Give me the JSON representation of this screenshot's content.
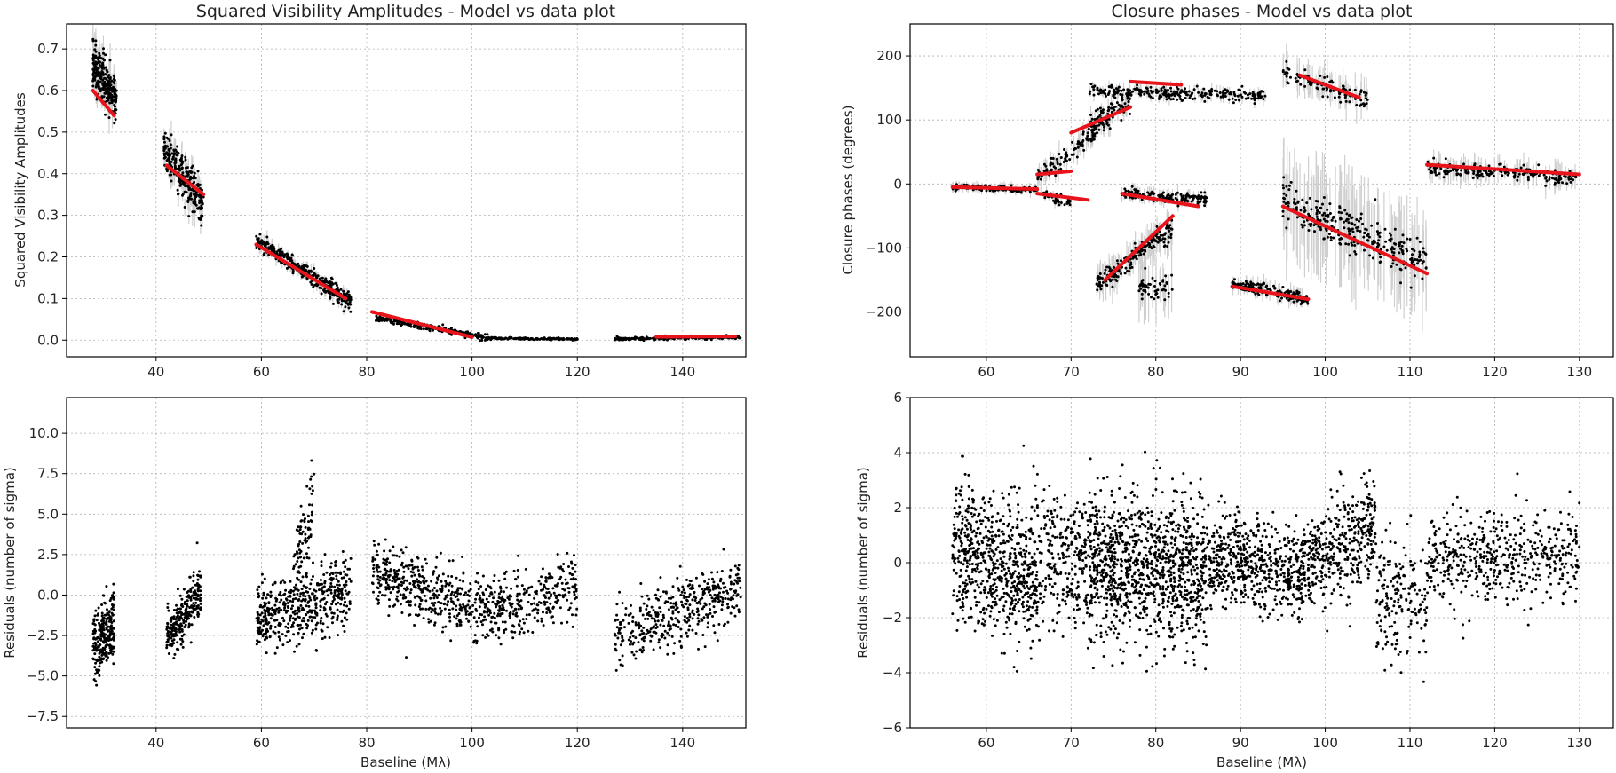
{
  "colors": {
    "data": "#000000",
    "model": "#e8141b",
    "errorbar": "#cfcfcf",
    "grid": "#b0b0b0"
  },
  "chart_data": [
    {
      "id": "v2",
      "type": "scatter",
      "title": "Squared Visibility Amplitudes - Model vs data plot",
      "xlabel": "",
      "ylabel": "Squared Visibility Amplitudes",
      "xlim": [
        23,
        152
      ],
      "ylim": [
        -0.04,
        0.76
      ],
      "xticks": [
        40,
        60,
        80,
        100,
        120,
        140
      ],
      "yticks": [
        0.0,
        0.1,
        0.2,
        0.3,
        0.4,
        0.5,
        0.6,
        0.7
      ],
      "ytick_labels": [
        "0.0",
        "0.1",
        "0.2",
        "0.3",
        "0.4",
        "0.5",
        "0.6",
        "0.7"
      ],
      "grid": true,
      "series": [
        {
          "name": "data",
          "marker": "dot",
          "segments": [
            {
              "x": [
                28,
                32.5
              ],
              "y": [
                0.66,
                0.58
              ],
              "spread": 0.05,
              "err": 0.03,
              "n": 260
            },
            {
              "x": [
                41.5,
                49
              ],
              "y": [
                0.46,
                0.33
              ],
              "spread": 0.04,
              "err": 0.025,
              "n": 260
            },
            {
              "x": [
                59,
                77
              ],
              "y": [
                0.24,
                0.09
              ],
              "spread": 0.018,
              "err": 0.012,
              "n": 360
            },
            {
              "x": [
                81,
                103
              ],
              "y": [
                0.055,
                0.005
              ],
              "spread": 0.006,
              "err": 0.003,
              "n": 240
            },
            {
              "x": [
                103,
                120
              ],
              "y": [
                0.005,
                0.002
              ],
              "spread": 0.002,
              "err": 0.001,
              "n": 150
            },
            {
              "x": [
                127,
                151
              ],
              "y": [
                0.003,
                0.007
              ],
              "spread": 0.003,
              "err": 0.001,
              "n": 220
            }
          ]
        },
        {
          "name": "model",
          "marker": "line",
          "segments": [
            {
              "x": [
                28,
                32
              ],
              "y": [
                0.6,
                0.54
              ]
            },
            {
              "x": [
                42,
                49
              ],
              "y": [
                0.42,
                0.35
              ]
            },
            {
              "x": [
                59,
                76
              ],
              "y": [
                0.23,
                0.1
              ]
            },
            {
              "x": [
                81,
                100
              ],
              "y": [
                0.068,
                0.007
              ]
            },
            {
              "x": [
                135,
                150
              ],
              "y": [
                0.008,
                0.009
              ]
            }
          ]
        }
      ]
    },
    {
      "id": "cp",
      "type": "scatter",
      "title": "Closure phases - Model vs data plot",
      "xlabel": "",
      "ylabel": "Closure phases (degrees)",
      "xlim": [
        51,
        134
      ],
      "ylim": [
        -270,
        250
      ],
      "xticks": [
        60,
        70,
        80,
        90,
        100,
        110,
        120,
        130
      ],
      "yticks": [
        -200,
        -100,
        0,
        100,
        200
      ],
      "ytick_labels": [
        "−200",
        "−100",
        "0",
        "100",
        "200"
      ],
      "grid": true,
      "series": [
        {
          "name": "data",
          "marker": "dot",
          "segments": [
            {
              "x": [
                56,
                66
              ],
              "y": [
                -5,
                -10
              ],
              "spread": 4,
              "err": 6,
              "n": 140
            },
            {
              "x": [
                66,
                70
              ],
              "y": [
                -15,
                -30
              ],
              "spread": 8,
              "err": 6,
              "n": 40
            },
            {
              "x": [
                66,
                73
              ],
              "y": [
                10,
                80
              ],
              "spread": 12,
              "err": 15,
              "n": 100
            },
            {
              "x": [
                72,
                77
              ],
              "y": [
                90,
                125
              ],
              "spread": 15,
              "err": 12,
              "n": 100
            },
            {
              "x": [
                72,
                93
              ],
              "y": [
                145,
                138
              ],
              "spread": 8,
              "err": 8,
              "n": 260
            },
            {
              "x": [
                95,
                105
              ],
              "y": [
                175,
                130
              ],
              "spread": 12,
              "err": 20,
              "n": 120
            },
            {
              "x": [
                76,
                86
              ],
              "y": [
                -15,
                -25
              ],
              "spread": 7,
              "err": 8,
              "n": 160
            },
            {
              "x": [
                73,
                82
              ],
              "y": [
                -155,
                -70
              ],
              "spread": 14,
              "err": 20,
              "n": 180
            },
            {
              "x": [
                78,
                82
              ],
              "y": [
                -165,
                -160
              ],
              "spread": 15,
              "err": 40,
              "n": 50
            },
            {
              "x": [
                89,
                98
              ],
              "y": [
                -155,
                -180
              ],
              "spread": 8,
              "err": 10,
              "n": 160
            },
            {
              "x": [
                95,
                112
              ],
              "y": [
                -30,
                -120
              ],
              "spread": 28,
              "err": 60,
              "n": 300
            },
            {
              "x": [
                112,
                130
              ],
              "y": [
                25,
                10
              ],
              "spread": 10,
              "err": 15,
              "n": 220
            }
          ]
        },
        {
          "name": "model",
          "marker": "line",
          "segments": [
            {
              "x": [
                56,
                66
              ],
              "y": [
                -5,
                -8
              ]
            },
            {
              "x": [
                66,
                72
              ],
              "y": [
                -15,
                -25
              ]
            },
            {
              "x": [
                66,
                70
              ],
              "y": [
                15,
                20
              ]
            },
            {
              "x": [
                70,
                77
              ],
              "y": [
                80,
                120
              ]
            },
            {
              "x": [
                77,
                83
              ],
              "y": [
                160,
                155
              ]
            },
            {
              "x": [
                97,
                104
              ],
              "y": [
                170,
                135
              ]
            },
            {
              "x": [
                76,
                85
              ],
              "y": [
                -15,
                -35
              ]
            },
            {
              "x": [
                74,
                82
              ],
              "y": [
                -150,
                -50
              ]
            },
            {
              "x": [
                89,
                98
              ],
              "y": [
                -160,
                -180
              ]
            },
            {
              "x": [
                95,
                112
              ],
              "y": [
                -35,
                -140
              ]
            },
            {
              "x": [
                112,
                130
              ],
              "y": [
                30,
                15
              ]
            }
          ]
        }
      ]
    },
    {
      "id": "v2res",
      "type": "scatter",
      "title": "",
      "xlabel": "Baseline (Mλ)",
      "ylabel": "Residuals (number of sigma)",
      "xlim": [
        23,
        152
      ],
      "ylim": [
        -8.2,
        12.2
      ],
      "xticks": [
        40,
        60,
        80,
        100,
        120,
        140
      ],
      "yticks": [
        -7.5,
        -5.0,
        -2.5,
        0.0,
        2.5,
        5.0,
        7.5,
        10.0
      ],
      "ytick_labels": [
        "−7.5",
        "−5.0",
        "−2.5",
        "0.0",
        "2.5",
        "5.0",
        "7.5",
        "10.0"
      ],
      "grid": true,
      "series": [
        {
          "name": "residuals",
          "marker": "dot",
          "segments": [
            {
              "x": [
                28,
                32
              ],
              "y": [
                -3.5,
                -1.5
              ],
              "spread": 1.6,
              "n": 260
            },
            {
              "x": [
                42,
                48.5
              ],
              "y": [
                -2.8,
                0.2
              ],
              "spread": 1.3,
              "n": 260
            },
            {
              "x": [
                59,
                77
              ],
              "y": [
                -1.5,
                0.2
              ],
              "spread": 1.8,
              "n": 480
            },
            {
              "x": [
                66,
                70
              ],
              "y": [
                1.5,
                6.0
              ],
              "spread": 2.0,
              "n": 80
            },
            {
              "x": [
                81,
                103
              ],
              "y": [
                1.5,
                -1.0
              ],
              "spread": 1.6,
              "n": 460
            },
            {
              "x": [
                103,
                120
              ],
              "y": [
                -1.0,
                0.5
              ],
              "spread": 1.7,
              "n": 300
            },
            {
              "x": [
                127,
                151
              ],
              "y": [
                -2.5,
                0.3
              ],
              "spread": 1.7,
              "n": 420
            }
          ]
        }
      ]
    },
    {
      "id": "cpres",
      "type": "scatter",
      "title": "",
      "xlabel": "Baseline (Mλ)",
      "ylabel": "Residuals (number of sigma)",
      "xlim": [
        51,
        134
      ],
      "ylim": [
        -6,
        6
      ],
      "xticks": [
        60,
        70,
        80,
        90,
        100,
        110,
        120,
        130
      ],
      "yticks": [
        -6,
        -4,
        -2,
        0,
        2,
        4,
        6
      ],
      "ytick_labels": [
        "−6",
        "−4",
        "−2",
        "0",
        "2",
        "4",
        "6"
      ],
      "grid": true,
      "series": [
        {
          "name": "residuals",
          "marker": "dot",
          "segments": [
            {
              "x": [
                56,
                66
              ],
              "y": [
                0.5,
                -0.5
              ],
              "spread": 2.0,
              "n": 700
            },
            {
              "x": [
                66,
                72
              ],
              "y": [
                0.3,
                0.0
              ],
              "spread": 2.0,
              "n": 260
            },
            {
              "x": [
                72,
                86
              ],
              "y": [
                0.2,
                -0.6
              ],
              "spread": 2.2,
              "n": 1100
            },
            {
              "x": [
                86,
                96
              ],
              "y": [
                0.3,
                -0.4
              ],
              "spread": 1.4,
              "n": 500
            },
            {
              "x": [
                96,
                106
              ],
              "y": [
                -0.5,
                1.2
              ],
              "spread": 1.5,
              "n": 500
            },
            {
              "x": [
                106,
                112
              ],
              "y": [
                -1.0,
                -1.5
              ],
              "spread": 1.8,
              "n": 180
            },
            {
              "x": [
                112,
                130
              ],
              "y": [
                0.0,
                0.4
              ],
              "spread": 1.4,
              "n": 520
            }
          ]
        }
      ]
    }
  ]
}
